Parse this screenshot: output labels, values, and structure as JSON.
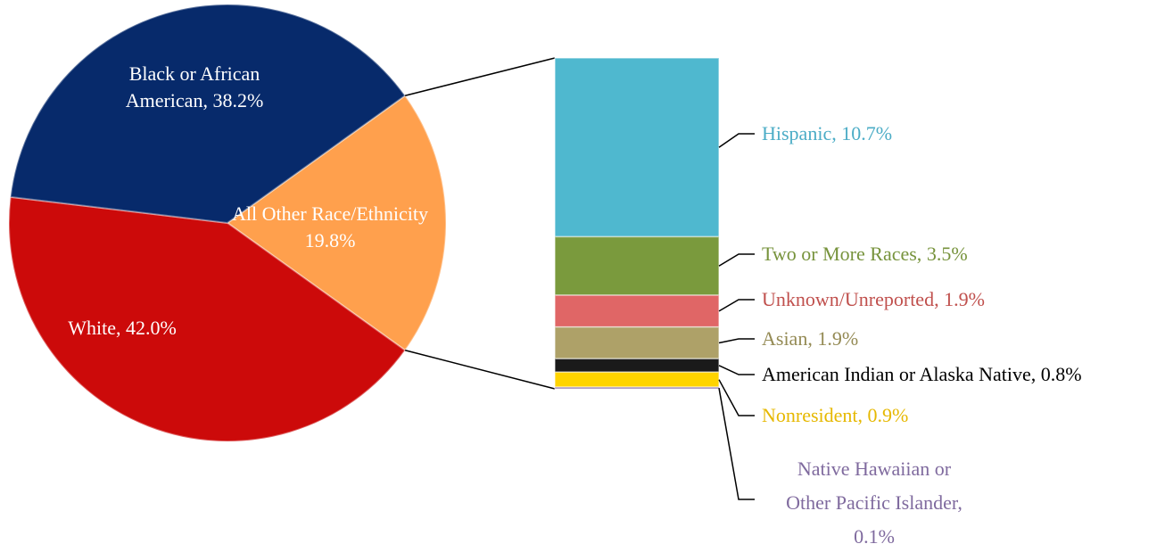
{
  "chart_data": {
    "type": "pie-of-bar",
    "pie": {
      "categories": [
        "All Other Race/Ethnicity",
        "White,",
        "Black or African American,"
      ],
      "values": [
        19.8,
        42.0,
        38.2
      ],
      "value_labels": [
        "19.8%",
        "42.0%",
        "38.2%"
      ],
      "colors": [
        "#ffa04d",
        "#cc0a0a",
        "#072a6b"
      ]
    },
    "bar": {
      "categories": [
        "Hispanic,",
        "Two or More Races,",
        "Unknown/Unreported,",
        "Asian,",
        "American Indian or Alaska Native,",
        "Nonresident,",
        "Native Hawaiian or Other Pacific Islander,"
      ],
      "values": [
        10.7,
        3.5,
        1.9,
        1.9,
        0.8,
        0.9,
        0.1
      ],
      "value_labels": [
        "10.7%",
        "3.5%",
        "1.9%",
        "1.9%",
        "0.8%",
        "0.9%",
        "0.1%"
      ],
      "colors": [
        "#4fb8cf",
        "#7a9a3d",
        "#e06666",
        "#aea168",
        "#1a1a1a",
        "#ffd400",
        "#8064a2"
      ],
      "label_colors": [
        "#4bacc6",
        "#77933c",
        "#c0504d",
        "#948a54",
        "#000000",
        "#e6b800",
        "#7f6a9e"
      ]
    }
  }
}
